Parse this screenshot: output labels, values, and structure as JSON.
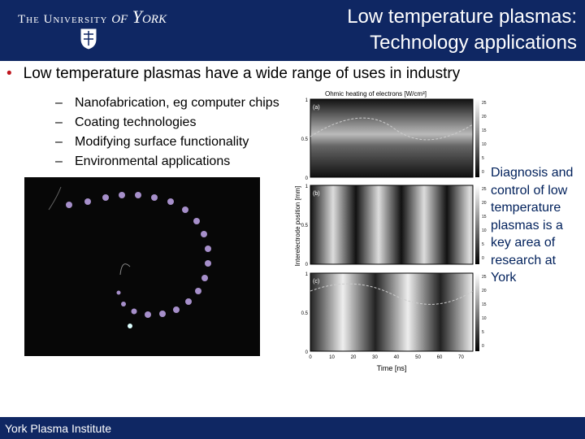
{
  "header": {
    "logo_main": "The University",
    "logo_of": "of York",
    "title_lines": [
      "Low temperature plasmas:",
      "Technology applications"
    ]
  },
  "bullet": "Low temperature plasmas have a wide range of uses in industry",
  "sub_bullets": [
    "Nanofabrication, eg computer chips",
    "Coating technologies",
    "Modifying surface functionality",
    "Environmental applications"
  ],
  "figure": {
    "title": "Ohmic heating of electrons [W/cm³]",
    "y_label": "Interelectrode position [mm]",
    "x_label": "Time [ns]",
    "panels": [
      "(a)",
      "(b)",
      "(c)"
    ],
    "y_ticks": [
      "0",
      "0.5",
      "1"
    ],
    "x_ticks": [
      "0",
      "10",
      "20",
      "30",
      "40",
      "50",
      "60",
      "70"
    ],
    "colorbar_ticks": [
      "25",
      "20",
      "15",
      "10",
      "5",
      "0"
    ]
  },
  "side_text": "Diagnosis and control of low temperature plasmas is a key area of research at York",
  "footer": "York Plasma Institute"
}
